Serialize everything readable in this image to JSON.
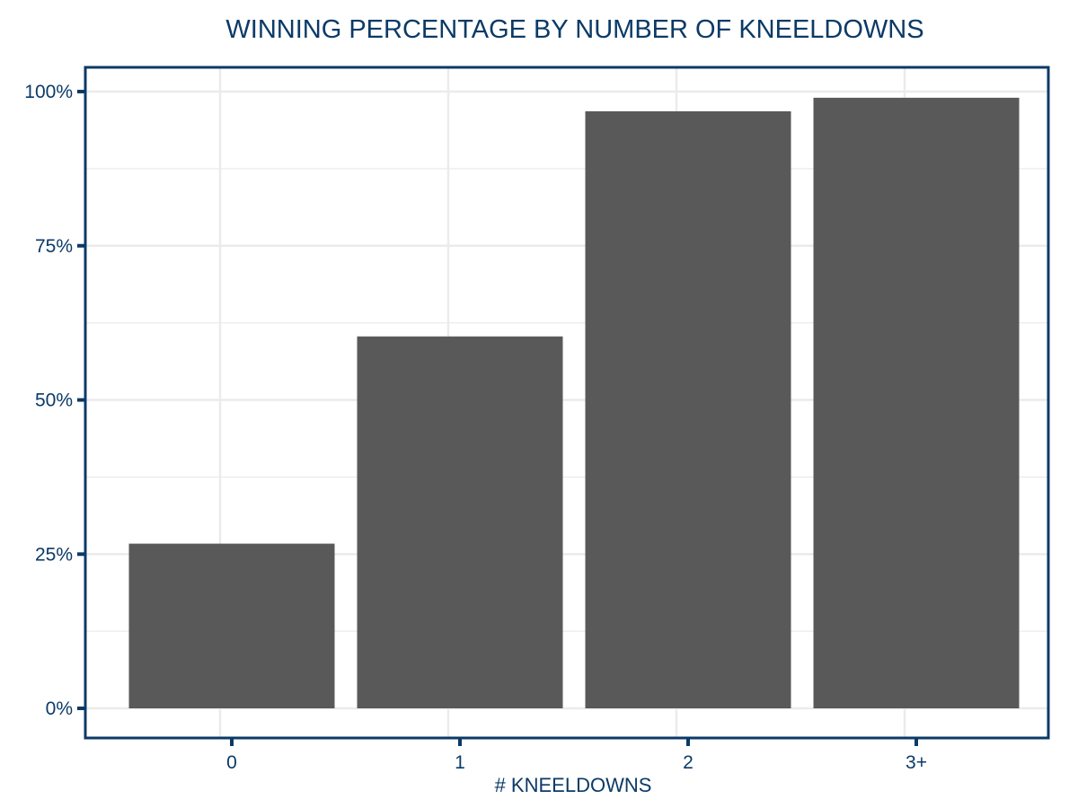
{
  "chart_data": {
    "type": "bar",
    "title": "WINNING PERCENTAGE BY NUMBER OF KNEELDOWNS",
    "xlabel": "# KNEELDOWNS",
    "ylabel": "",
    "categories": [
      "0",
      "1",
      "2",
      "3+"
    ],
    "values": [
      26.7,
      60.3,
      96.8,
      99.0
    ],
    "ylim": [
      0,
      100
    ],
    "yticks": [
      0,
      25,
      50,
      75,
      100
    ],
    "ytick_labels": [
      "0%",
      "25%",
      "50%",
      "75%",
      "100%"
    ],
    "grid": true,
    "legend": "none",
    "colors": {
      "bar": "#595959",
      "axis": "#0b3a67",
      "grid": "#ebebeb",
      "background": "#ffffff"
    }
  }
}
